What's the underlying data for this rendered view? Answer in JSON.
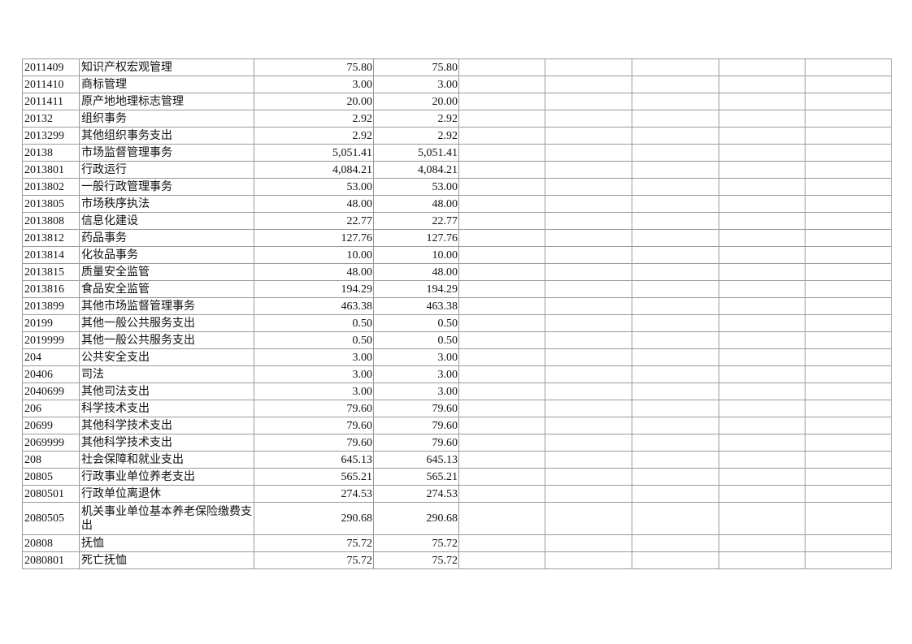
{
  "rows": [
    {
      "code": "2011409",
      "name": "知识产权宏观管理",
      "v1": "75.80",
      "v2": "75.80"
    },
    {
      "code": "2011410",
      "name": "商标管理",
      "v1": "3.00",
      "v2": "3.00"
    },
    {
      "code": "2011411",
      "name": "原产地地理标志管理",
      "v1": "20.00",
      "v2": "20.00"
    },
    {
      "code": "20132",
      "name": "组织事务",
      "v1": "2.92",
      "v2": "2.92"
    },
    {
      "code": "2013299",
      "name": "其他组织事务支出",
      "v1": "2.92",
      "v2": "2.92"
    },
    {
      "code": "20138",
      "name": "市场监督管理事务",
      "v1": "5,051.41",
      "v2": "5,051.41"
    },
    {
      "code": "2013801",
      "name": "行政运行",
      "v1": "4,084.21",
      "v2": "4,084.21"
    },
    {
      "code": "2013802",
      "name": "一般行政管理事务",
      "v1": "53.00",
      "v2": "53.00"
    },
    {
      "code": "2013805",
      "name": "市场秩序执法",
      "v1": "48.00",
      "v2": "48.00"
    },
    {
      "code": "2013808",
      "name": "信息化建设",
      "v1": "22.77",
      "v2": "22.77"
    },
    {
      "code": "2013812",
      "name": "药品事务",
      "v1": "127.76",
      "v2": "127.76"
    },
    {
      "code": "2013814",
      "name": "化妆品事务",
      "v1": "10.00",
      "v2": "10.00"
    },
    {
      "code": "2013815",
      "name": "质量安全监管",
      "v1": "48.00",
      "v2": "48.00"
    },
    {
      "code": "2013816",
      "name": "食品安全监管",
      "v1": "194.29",
      "v2": "194.29"
    },
    {
      "code": "2013899",
      "name": "其他市场监督管理事务",
      "v1": "463.38",
      "v2": "463.38"
    },
    {
      "code": "20199",
      "name": "其他一般公共服务支出",
      "v1": "0.50",
      "v2": "0.50"
    },
    {
      "code": "2019999",
      "name": "其他一般公共服务支出",
      "v1": "0.50",
      "v2": "0.50"
    },
    {
      "code": "204",
      "name": "公共安全支出",
      "v1": "3.00",
      "v2": "3.00"
    },
    {
      "code": "20406",
      "name": "司法",
      "v1": "3.00",
      "v2": "3.00"
    },
    {
      "code": "2040699",
      "name": "其他司法支出",
      "v1": "3.00",
      "v2": "3.00"
    },
    {
      "code": "206",
      "name": "科学技术支出",
      "v1": "79.60",
      "v2": "79.60"
    },
    {
      "code": "20699",
      "name": "其他科学技术支出",
      "v1": "79.60",
      "v2": "79.60"
    },
    {
      "code": "2069999",
      "name": "其他科学技术支出",
      "v1": "79.60",
      "v2": "79.60"
    },
    {
      "code": "208",
      "name": "社会保障和就业支出",
      "v1": "645.13",
      "v2": "645.13"
    },
    {
      "code": "20805",
      "name": "行政事业单位养老支出",
      "v1": "565.21",
      "v2": "565.21"
    },
    {
      "code": "2080501",
      "name": "行政单位离退休",
      "v1": "274.53",
      "v2": "274.53"
    },
    {
      "code": "2080505",
      "name": "机关事业单位基本养老保险缴费支出",
      "v1": "290.68",
      "v2": "290.68"
    },
    {
      "code": "20808",
      "name": "抚恤",
      "v1": "75.72",
      "v2": "75.72"
    },
    {
      "code": "2080801",
      "name": "死亡抚恤",
      "v1": "75.72",
      "v2": "75.72"
    }
  ]
}
